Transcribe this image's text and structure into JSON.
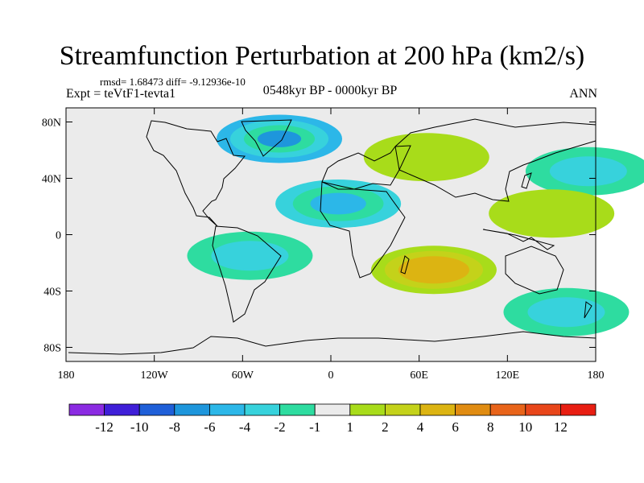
{
  "chart_data": {
    "type": "heatmap",
    "title": "Streamfunction Perturbation at 200 hPa (km2/s)",
    "stats_label": "rmsd= 1.68473 diff= -9.12936e-10",
    "experiment_label": "Expt = teVtF1-tevta1",
    "period_label": "0548kyr BP - 0000kyr BP",
    "season_label": "ANN",
    "units": "km2/s",
    "x_axis": {
      "range": [
        -180,
        180
      ],
      "ticks": [
        -180,
        -120,
        -60,
        0,
        60,
        120,
        180
      ],
      "tick_labels": [
        "180",
        "120W",
        "60W",
        "0",
        "60E",
        "120E",
        "180"
      ]
    },
    "y_axis": {
      "range": [
        -90,
        90
      ],
      "ticks": [
        80,
        40,
        0,
        -40,
        -80
      ],
      "tick_labels": [
        "80N",
        "40N",
        "0",
        "40S",
        "80S"
      ]
    },
    "colorbar": {
      "levels": [
        -12,
        -10,
        -8,
        -6,
        -4,
        -2,
        -1,
        1,
        2,
        4,
        6,
        8,
        10,
        12
      ],
      "labels": [
        "-12",
        "-10",
        "-8",
        "-6",
        "-4",
        "-2",
        "-1",
        "1",
        "2",
        "4",
        "6",
        "8",
        "10",
        "12"
      ],
      "colors": [
        "#8b2be2",
        "#3f1fd8",
        "#1f5fd8",
        "#1e96dc",
        "#2cb7e8",
        "#37d2dc",
        "#2edca0",
        "#ebebeb",
        "#a8dc1a",
        "#c4d21a",
        "#dcb412",
        "#e08c12",
        "#e8641a",
        "#e8461a",
        "#e81e12"
      ]
    },
    "anomaly_features": [
      {
        "name": "north-atlantic-low",
        "lon": -35,
        "lat": 68,
        "value": -6
      },
      {
        "name": "north-africa-low",
        "lon": 5,
        "lat": 22,
        "value": -4
      },
      {
        "name": "indian-ocean-high",
        "lon": 70,
        "lat": -25,
        "value": 6
      },
      {
        "name": "eurasia-high",
        "lon": 65,
        "lat": 55,
        "value": 2
      },
      {
        "name": "south-america-low",
        "lon": -55,
        "lat": -15,
        "value": -2
      },
      {
        "name": "north-pacific-low",
        "lon": 175,
        "lat": 45,
        "value": -2
      },
      {
        "name": "southern-pacific-low",
        "lon": 160,
        "lat": -55,
        "value": -2
      },
      {
        "name": "west-pacific-high",
        "lon": 150,
        "lat": 15,
        "value": 2
      }
    ]
  }
}
